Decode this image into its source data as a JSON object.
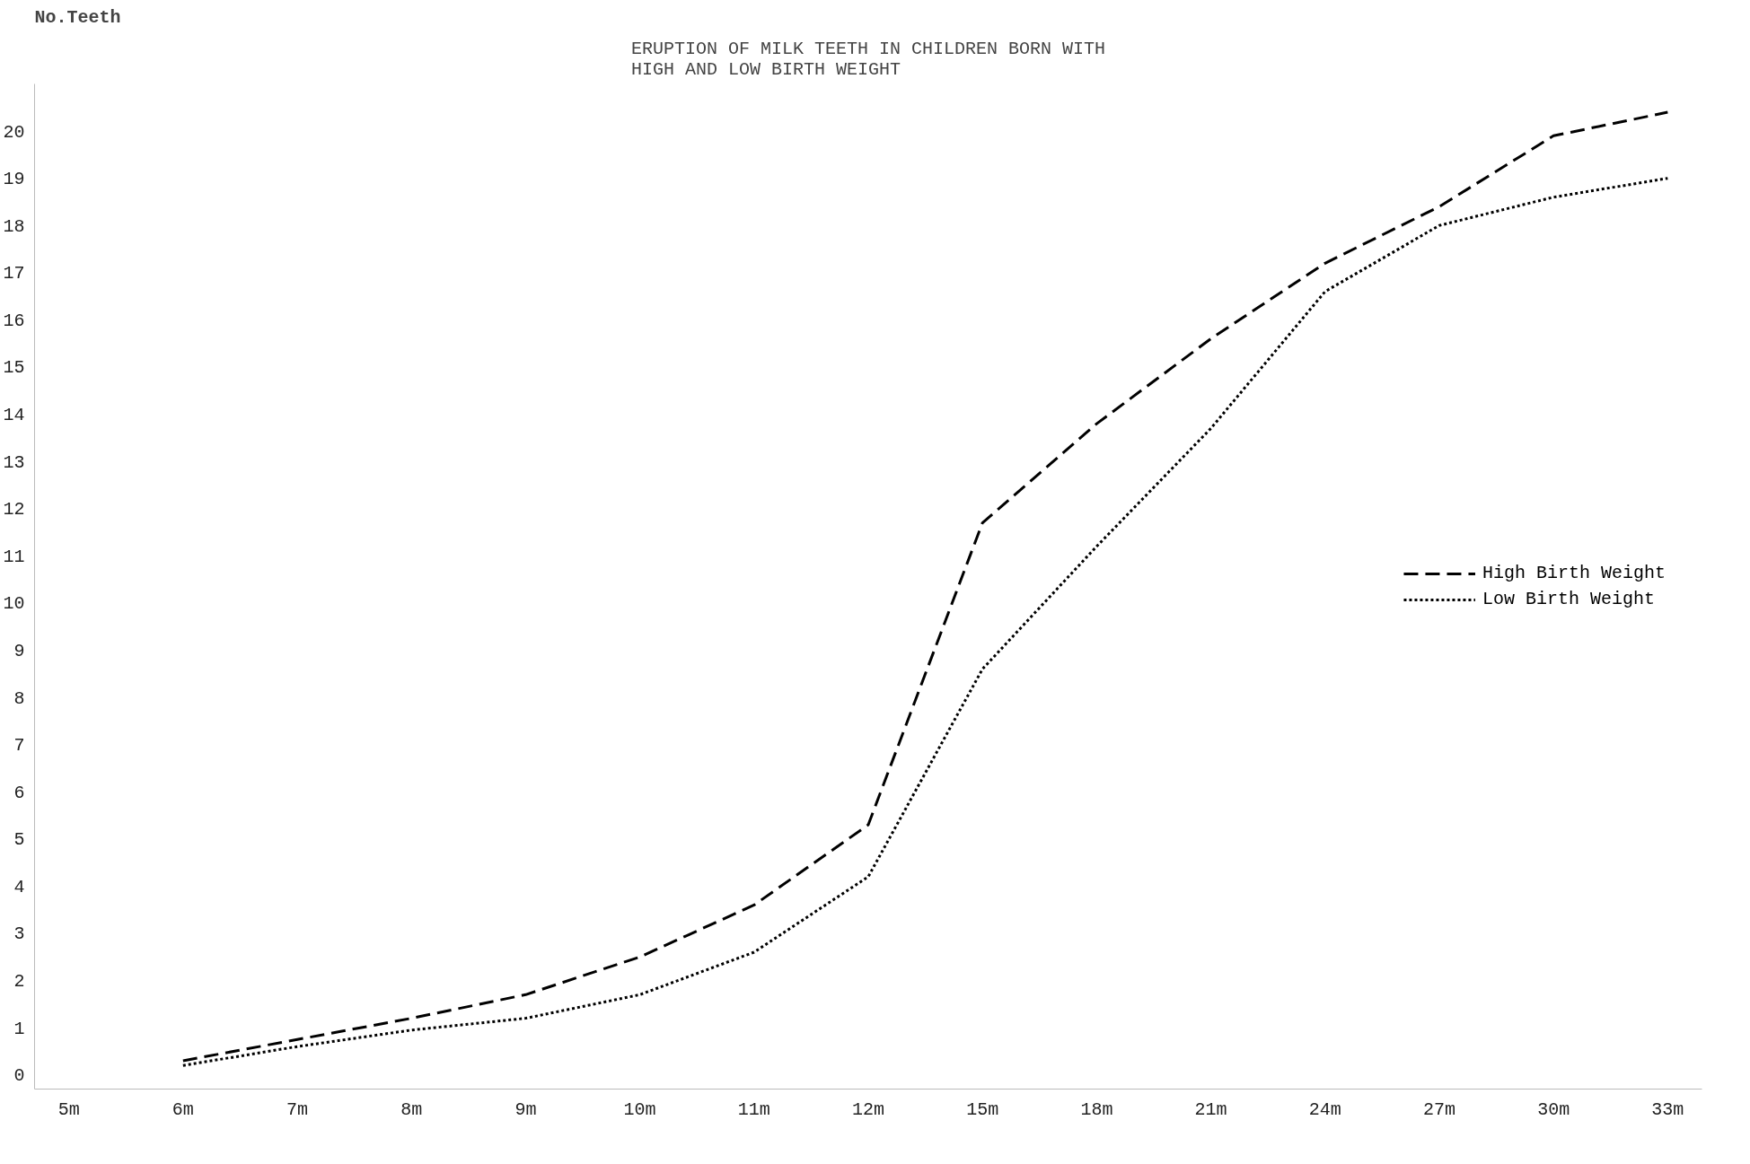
{
  "chart_data": {
    "type": "line",
    "title": "ERUPTION OF MILK TEETH IN CHILDREN BORN WITH\nHIGH AND LOW BIRTH WEIGHT",
    "ylabel": "No.Teeth",
    "categories": [
      "5m",
      "6m",
      "7m",
      "8m",
      "9m",
      "10m",
      "11m",
      "12m",
      "15m",
      "18m",
      "21m",
      "24m",
      "27m",
      "30m",
      "33m"
    ],
    "series": [
      {
        "name": "High Birth Weight",
        "color": "#000000",
        "line_style": "dashed",
        "values": [
          null,
          0.3,
          0.75,
          1.2,
          1.7,
          2.5,
          3.6,
          5.3,
          11.7,
          13.8,
          15.6,
          17.2,
          18.4,
          19.9,
          20.4
        ]
      },
      {
        "name": "Low Birth Weight",
        "color": "#000000",
        "line_style": "dotted",
        "values": [
          null,
          0.2,
          0.6,
          0.95,
          1.2,
          1.7,
          2.6,
          4.2,
          8.6,
          11.2,
          13.7,
          16.6,
          18.0,
          18.6,
          19.0
        ]
      }
    ],
    "ylim": [
      -0.3,
      21
    ],
    "yticks": [
      0,
      1,
      2,
      3,
      4,
      5,
      6,
      7,
      8,
      9,
      10,
      11,
      12,
      13,
      14,
      15,
      16,
      17,
      18,
      19,
      20
    ],
    "grid": false,
    "legend": "right",
    "marker": "none"
  }
}
